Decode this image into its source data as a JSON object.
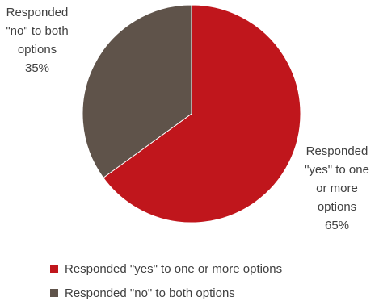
{
  "chart_data": {
    "type": "pie",
    "slices": [
      {
        "label": "Responded  \"yes\" to one or more options",
        "value": 65,
        "color": "#c0161c"
      },
      {
        "label": "Responded  \"no\" to both options",
        "value": 35,
        "color": "#5f534a"
      }
    ],
    "data_labels": [
      {
        "lines": "Responded\n\"yes\" to one\nor more\noptions\n65%"
      },
      {
        "lines": "Responded\n\"no\" to both\noptions\n35%"
      }
    ],
    "legend": {
      "position": "bottom",
      "items": [
        {
          "label": "Responded  \"yes\" to one or more options",
          "color": "#c0161c"
        },
        {
          "label": "Responded  \"no\" to both options",
          "color": "#5f534a"
        }
      ]
    }
  }
}
